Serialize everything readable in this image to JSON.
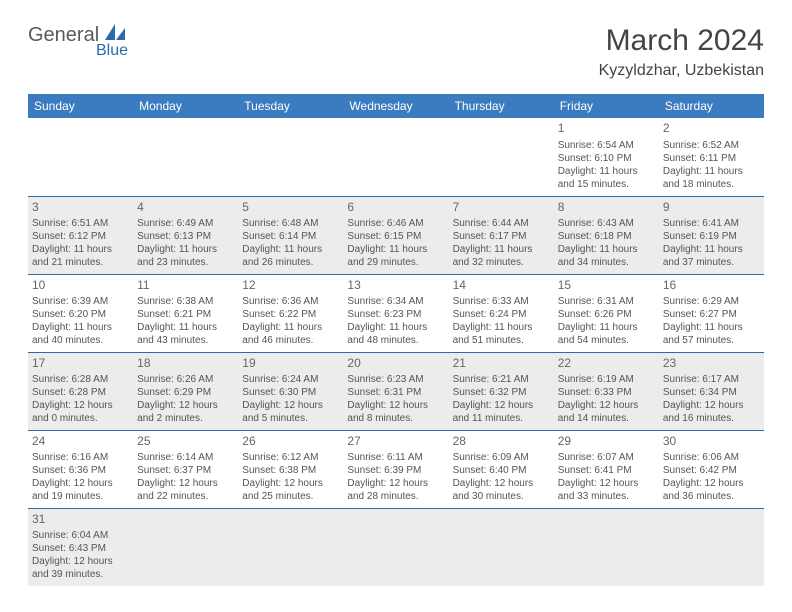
{
  "logo": {
    "text1": "General",
    "text2": "Blue"
  },
  "title": "March 2024",
  "location": "Kyzyldzhar, Uzbekistan",
  "colors": {
    "header_bg": "#3b7bbf",
    "header_text": "#ffffff",
    "row_border": "#2a6bb0",
    "shade_bg": "#ececec",
    "text": "#555555",
    "logo_gray": "#5a5a5a",
    "logo_blue": "#2a6bb0"
  },
  "dayHeaders": [
    "Sunday",
    "Monday",
    "Tuesday",
    "Wednesday",
    "Thursday",
    "Friday",
    "Saturday"
  ],
  "weeks": [
    [
      null,
      null,
      null,
      null,
      null,
      {
        "n": "1",
        "sr": "Sunrise: 6:54 AM",
        "ss": "Sunset: 6:10 PM",
        "d1": "Daylight: 11 hours",
        "d2": "and 15 minutes."
      },
      {
        "n": "2",
        "sr": "Sunrise: 6:52 AM",
        "ss": "Sunset: 6:11 PM",
        "d1": "Daylight: 11 hours",
        "d2": "and 18 minutes."
      }
    ],
    [
      {
        "n": "3",
        "sr": "Sunrise: 6:51 AM",
        "ss": "Sunset: 6:12 PM",
        "d1": "Daylight: 11 hours",
        "d2": "and 21 minutes."
      },
      {
        "n": "4",
        "sr": "Sunrise: 6:49 AM",
        "ss": "Sunset: 6:13 PM",
        "d1": "Daylight: 11 hours",
        "d2": "and 23 minutes."
      },
      {
        "n": "5",
        "sr": "Sunrise: 6:48 AM",
        "ss": "Sunset: 6:14 PM",
        "d1": "Daylight: 11 hours",
        "d2": "and 26 minutes."
      },
      {
        "n": "6",
        "sr": "Sunrise: 6:46 AM",
        "ss": "Sunset: 6:15 PM",
        "d1": "Daylight: 11 hours",
        "d2": "and 29 minutes."
      },
      {
        "n": "7",
        "sr": "Sunrise: 6:44 AM",
        "ss": "Sunset: 6:17 PM",
        "d1": "Daylight: 11 hours",
        "d2": "and 32 minutes."
      },
      {
        "n": "8",
        "sr": "Sunrise: 6:43 AM",
        "ss": "Sunset: 6:18 PM",
        "d1": "Daylight: 11 hours",
        "d2": "and 34 minutes."
      },
      {
        "n": "9",
        "sr": "Sunrise: 6:41 AM",
        "ss": "Sunset: 6:19 PM",
        "d1": "Daylight: 11 hours",
        "d2": "and 37 minutes."
      }
    ],
    [
      {
        "n": "10",
        "sr": "Sunrise: 6:39 AM",
        "ss": "Sunset: 6:20 PM",
        "d1": "Daylight: 11 hours",
        "d2": "and 40 minutes."
      },
      {
        "n": "11",
        "sr": "Sunrise: 6:38 AM",
        "ss": "Sunset: 6:21 PM",
        "d1": "Daylight: 11 hours",
        "d2": "and 43 minutes."
      },
      {
        "n": "12",
        "sr": "Sunrise: 6:36 AM",
        "ss": "Sunset: 6:22 PM",
        "d1": "Daylight: 11 hours",
        "d2": "and 46 minutes."
      },
      {
        "n": "13",
        "sr": "Sunrise: 6:34 AM",
        "ss": "Sunset: 6:23 PM",
        "d1": "Daylight: 11 hours",
        "d2": "and 48 minutes."
      },
      {
        "n": "14",
        "sr": "Sunrise: 6:33 AM",
        "ss": "Sunset: 6:24 PM",
        "d1": "Daylight: 11 hours",
        "d2": "and 51 minutes."
      },
      {
        "n": "15",
        "sr": "Sunrise: 6:31 AM",
        "ss": "Sunset: 6:26 PM",
        "d1": "Daylight: 11 hours",
        "d2": "and 54 minutes."
      },
      {
        "n": "16",
        "sr": "Sunrise: 6:29 AM",
        "ss": "Sunset: 6:27 PM",
        "d1": "Daylight: 11 hours",
        "d2": "and 57 minutes."
      }
    ],
    [
      {
        "n": "17",
        "sr": "Sunrise: 6:28 AM",
        "ss": "Sunset: 6:28 PM",
        "d1": "Daylight: 12 hours",
        "d2": "and 0 minutes."
      },
      {
        "n": "18",
        "sr": "Sunrise: 6:26 AM",
        "ss": "Sunset: 6:29 PM",
        "d1": "Daylight: 12 hours",
        "d2": "and 2 minutes."
      },
      {
        "n": "19",
        "sr": "Sunrise: 6:24 AM",
        "ss": "Sunset: 6:30 PM",
        "d1": "Daylight: 12 hours",
        "d2": "and 5 minutes."
      },
      {
        "n": "20",
        "sr": "Sunrise: 6:23 AM",
        "ss": "Sunset: 6:31 PM",
        "d1": "Daylight: 12 hours",
        "d2": "and 8 minutes."
      },
      {
        "n": "21",
        "sr": "Sunrise: 6:21 AM",
        "ss": "Sunset: 6:32 PM",
        "d1": "Daylight: 12 hours",
        "d2": "and 11 minutes."
      },
      {
        "n": "22",
        "sr": "Sunrise: 6:19 AM",
        "ss": "Sunset: 6:33 PM",
        "d1": "Daylight: 12 hours",
        "d2": "and 14 minutes."
      },
      {
        "n": "23",
        "sr": "Sunrise: 6:17 AM",
        "ss": "Sunset: 6:34 PM",
        "d1": "Daylight: 12 hours",
        "d2": "and 16 minutes."
      }
    ],
    [
      {
        "n": "24",
        "sr": "Sunrise: 6:16 AM",
        "ss": "Sunset: 6:36 PM",
        "d1": "Daylight: 12 hours",
        "d2": "and 19 minutes."
      },
      {
        "n": "25",
        "sr": "Sunrise: 6:14 AM",
        "ss": "Sunset: 6:37 PM",
        "d1": "Daylight: 12 hours",
        "d2": "and 22 minutes."
      },
      {
        "n": "26",
        "sr": "Sunrise: 6:12 AM",
        "ss": "Sunset: 6:38 PM",
        "d1": "Daylight: 12 hours",
        "d2": "and 25 minutes."
      },
      {
        "n": "27",
        "sr": "Sunrise: 6:11 AM",
        "ss": "Sunset: 6:39 PM",
        "d1": "Daylight: 12 hours",
        "d2": "and 28 minutes."
      },
      {
        "n": "28",
        "sr": "Sunrise: 6:09 AM",
        "ss": "Sunset: 6:40 PM",
        "d1": "Daylight: 12 hours",
        "d2": "and 30 minutes."
      },
      {
        "n": "29",
        "sr": "Sunrise: 6:07 AM",
        "ss": "Sunset: 6:41 PM",
        "d1": "Daylight: 12 hours",
        "d2": "and 33 minutes."
      },
      {
        "n": "30",
        "sr": "Sunrise: 6:06 AM",
        "ss": "Sunset: 6:42 PM",
        "d1": "Daylight: 12 hours",
        "d2": "and 36 minutes."
      }
    ],
    [
      {
        "n": "31",
        "sr": "Sunrise: 6:04 AM",
        "ss": "Sunset: 6:43 PM",
        "d1": "Daylight: 12 hours",
        "d2": "and 39 minutes."
      },
      null,
      null,
      null,
      null,
      null,
      null
    ]
  ]
}
